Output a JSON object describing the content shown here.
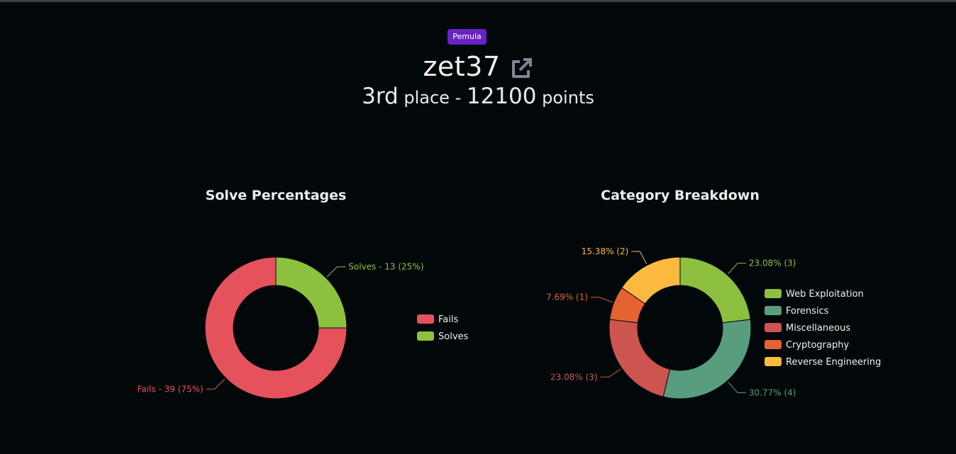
{
  "header": {
    "badge": "Pemula",
    "username": "zet37",
    "standing": {
      "place": "3rd",
      "place_word": "place",
      "sep": " - ",
      "points": "12100",
      "points_word": "points"
    }
  },
  "icons": {
    "external_link": "external-link-icon"
  },
  "chart_data": [
    {
      "type": "pie",
      "title": "Solve Percentages",
      "donut": true,
      "legend_position": "right",
      "slices": [
        {
          "name": "Fails",
          "value": 39,
          "label": "Fails - 39 (75%)",
          "color": "#e5525c"
        },
        {
          "name": "Solves",
          "value": 13,
          "label": "Solves - 13 (25%)",
          "color": "#8dc03f"
        }
      ]
    },
    {
      "type": "pie",
      "title": "Category Breakdown",
      "donut": true,
      "legend_position": "right",
      "slices": [
        {
          "name": "Web Exploitation",
          "value": 3,
          "label": "23.08% (3)",
          "color": "#8dc03f"
        },
        {
          "name": "Forensics",
          "value": 4,
          "label": "30.77% (4)",
          "color": "#589e7e"
        },
        {
          "name": "Miscellaneous",
          "value": 3,
          "label": "23.08% (3)",
          "color": "#cc5550"
        },
        {
          "name": "Cryptography",
          "value": 1,
          "label": "7.69% (1)",
          "color": "#e56330"
        },
        {
          "name": "Reverse Engineering",
          "value": 2,
          "label": "15.38% (2)",
          "color": "#fbb940"
        }
      ]
    }
  ]
}
